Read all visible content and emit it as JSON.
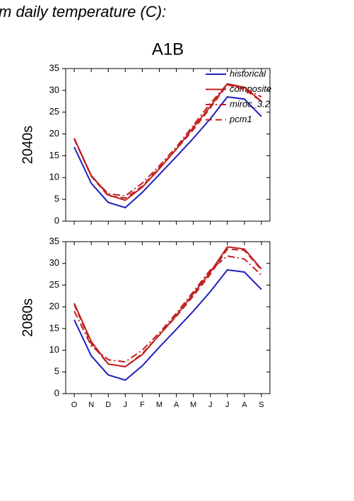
{
  "header": {
    "title": "m daily temperature (C):"
  },
  "chart_data": [
    {
      "type": "line",
      "title": "A1B",
      "ylabel": "2040s",
      "categories": [
        null,
        null,
        null,
        null,
        null,
        null,
        null,
        null,
        null,
        null,
        null,
        null
      ],
      "ylim": [
        0,
        35
      ],
      "yticks": [
        0,
        5,
        10,
        15,
        20,
        25,
        30,
        35
      ],
      "legend": true,
      "legend_position": "upper right",
      "series": [
        {
          "name": "historical",
          "color": "#1f1fbf",
          "dash": "solid",
          "values": [
            17,
            8.7,
            4.3,
            3.1,
            6.6,
            10.7,
            14.8,
            19,
            23.5,
            28.5,
            28,
            24
          ]
        },
        {
          "name": "composite",
          "color": "#c02020",
          "dash": "solid",
          "values": [
            19,
            10.5,
            6,
            4.8,
            7.8,
            12,
            16.5,
            21.5,
            26.3,
            31.5,
            30.7,
            27.5
          ]
        },
        {
          "name": "miroc_3.2",
          "color": "#c02020",
          "dash": "dashdot",
          "values": [
            19,
            10.3,
            6.3,
            5.8,
            8.7,
            12.7,
            17,
            22,
            27,
            31.5,
            30.5,
            28.5
          ]
        },
        {
          "name": "pcm1",
          "color": "#c02020",
          "dash": "dash",
          "values": [
            18.8,
            10.3,
            5.8,
            5.3,
            8,
            12.3,
            16.5,
            21,
            26,
            31.3,
            30.2,
            27.5
          ]
        }
      ]
    },
    {
      "type": "line",
      "ylabel": "2080s",
      "categories": [
        "O",
        "N",
        "D",
        "J",
        "F",
        "M",
        "A",
        "M",
        "J",
        "J",
        "A",
        "S"
      ],
      "ylim": [
        0,
        35
      ],
      "yticks": [
        0,
        5,
        10,
        15,
        20,
        25,
        30,
        35
      ],
      "legend": false,
      "series": [
        {
          "color": "#1f1fbf",
          "dash": "solid",
          "values": [
            17,
            8.7,
            4.3,
            3.1,
            6.4,
            10.7,
            14.8,
            19,
            23.5,
            28.5,
            28,
            24
          ]
        },
        {
          "color": "#c02020",
          "dash": "solid",
          "values": [
            20.8,
            12,
            6.8,
            6.2,
            9,
            13.5,
            18,
            23,
            28,
            33.8,
            33.3,
            28.7
          ]
        },
        {
          "color": "#c02020",
          "dash": "dashdot",
          "values": [
            19,
            11,
            7.8,
            7.3,
            10,
            14,
            18.5,
            23.5,
            28.5,
            31.7,
            31,
            27.3
          ]
        },
        {
          "color": "#c02020",
          "dash": "dash",
          "values": [
            20.5,
            11.5,
            6.8,
            6.2,
            9.2,
            13.5,
            17.8,
            22.5,
            27.5,
            33.3,
            33,
            28.5
          ]
        }
      ]
    }
  ]
}
